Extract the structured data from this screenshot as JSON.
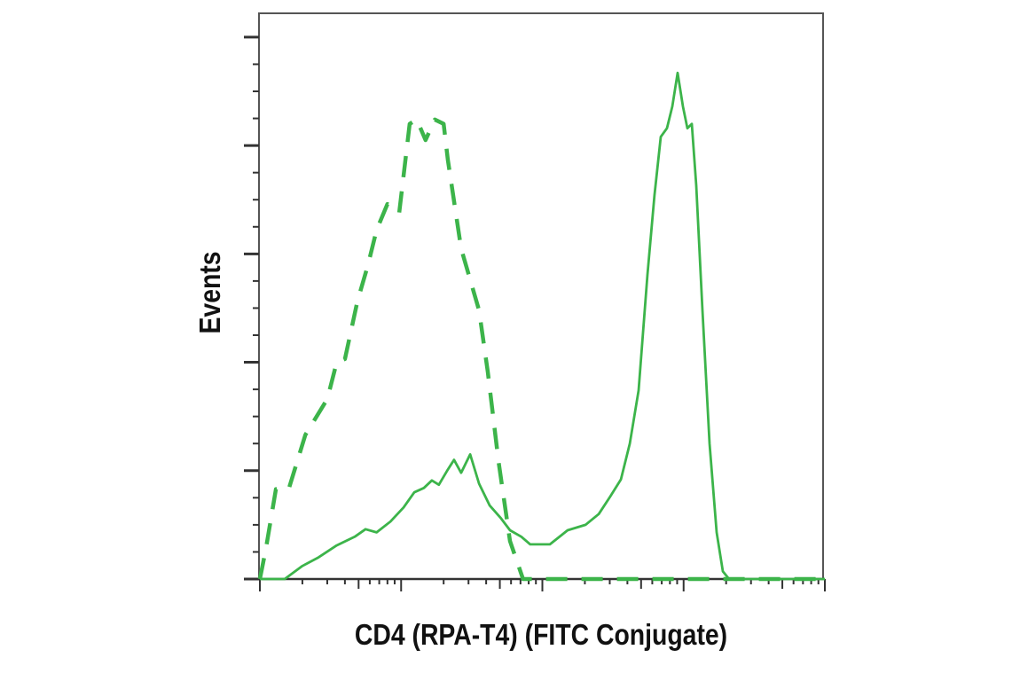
{
  "chart_data": {
    "type": "line",
    "title": "",
    "xlabel": "CD4 (RPA-T4) (FITC Conjugate)",
    "ylabel": "Events",
    "xscale": "log",
    "xlim": [
      1,
      10000
    ],
    "ylim": [
      0,
      5.22
    ],
    "grid": false,
    "legend": "none",
    "series": [
      {
        "style": "dashed",
        "color": "#3cb44a",
        "x": [
          1,
          1.1,
          1.3,
          1.6,
          2.1,
          3.0,
          3.5,
          4.0,
          4.9,
          5.8,
          6.7,
          8.0,
          9.7,
          11.5,
          12.9,
          14.9,
          17.3,
          20,
          21.4,
          26.6,
          35.6,
          41.1,
          48.9,
          59,
          73,
          10000
        ],
        "y": [
          0,
          0.27,
          0.83,
          0.83,
          1.33,
          1.66,
          2.0,
          2.03,
          2.56,
          2.89,
          3.22,
          3.46,
          3.38,
          4.2,
          4.24,
          4.05,
          4.24,
          4.2,
          3.87,
          3.05,
          2.48,
          1.91,
          1.09,
          0.35,
          0,
          0
        ]
      },
      {
        "style": "solid",
        "color": "#3cb44a",
        "x": [
          1,
          1.5,
          2.0,
          2.6,
          3.5,
          4.7,
          5.6,
          6.7,
          8.4,
          10.4,
          12.4,
          14.5,
          16.5,
          18.5,
          21.4,
          23.7,
          26.6,
          30.8,
          35.6,
          42.3,
          51,
          59,
          71,
          82,
          113,
          151,
          202,
          251,
          302,
          360,
          416,
          480,
          555,
          622,
          689,
          763,
          832,
          907,
          989,
          1064,
          1143,
          1228,
          1359,
          1527,
          1714,
          1897,
          2099,
          10000
        ],
        "y": [
          0,
          0,
          0.12,
          0.2,
          0.31,
          0.39,
          0.46,
          0.43,
          0.53,
          0.66,
          0.8,
          0.84,
          0.91,
          0.87,
          1.01,
          1.1,
          0.98,
          1.15,
          0.88,
          0.68,
          0.56,
          0.45,
          0.39,
          0.32,
          0.32,
          0.45,
          0.5,
          0.6,
          0.76,
          0.92,
          1.25,
          1.74,
          2.81,
          3.54,
          4.08,
          4.16,
          4.36,
          4.67,
          4.36,
          4.16,
          4.2,
          3.63,
          2.48,
          1.25,
          0.43,
          0.07,
          0,
          0
        ]
      }
    ]
  }
}
